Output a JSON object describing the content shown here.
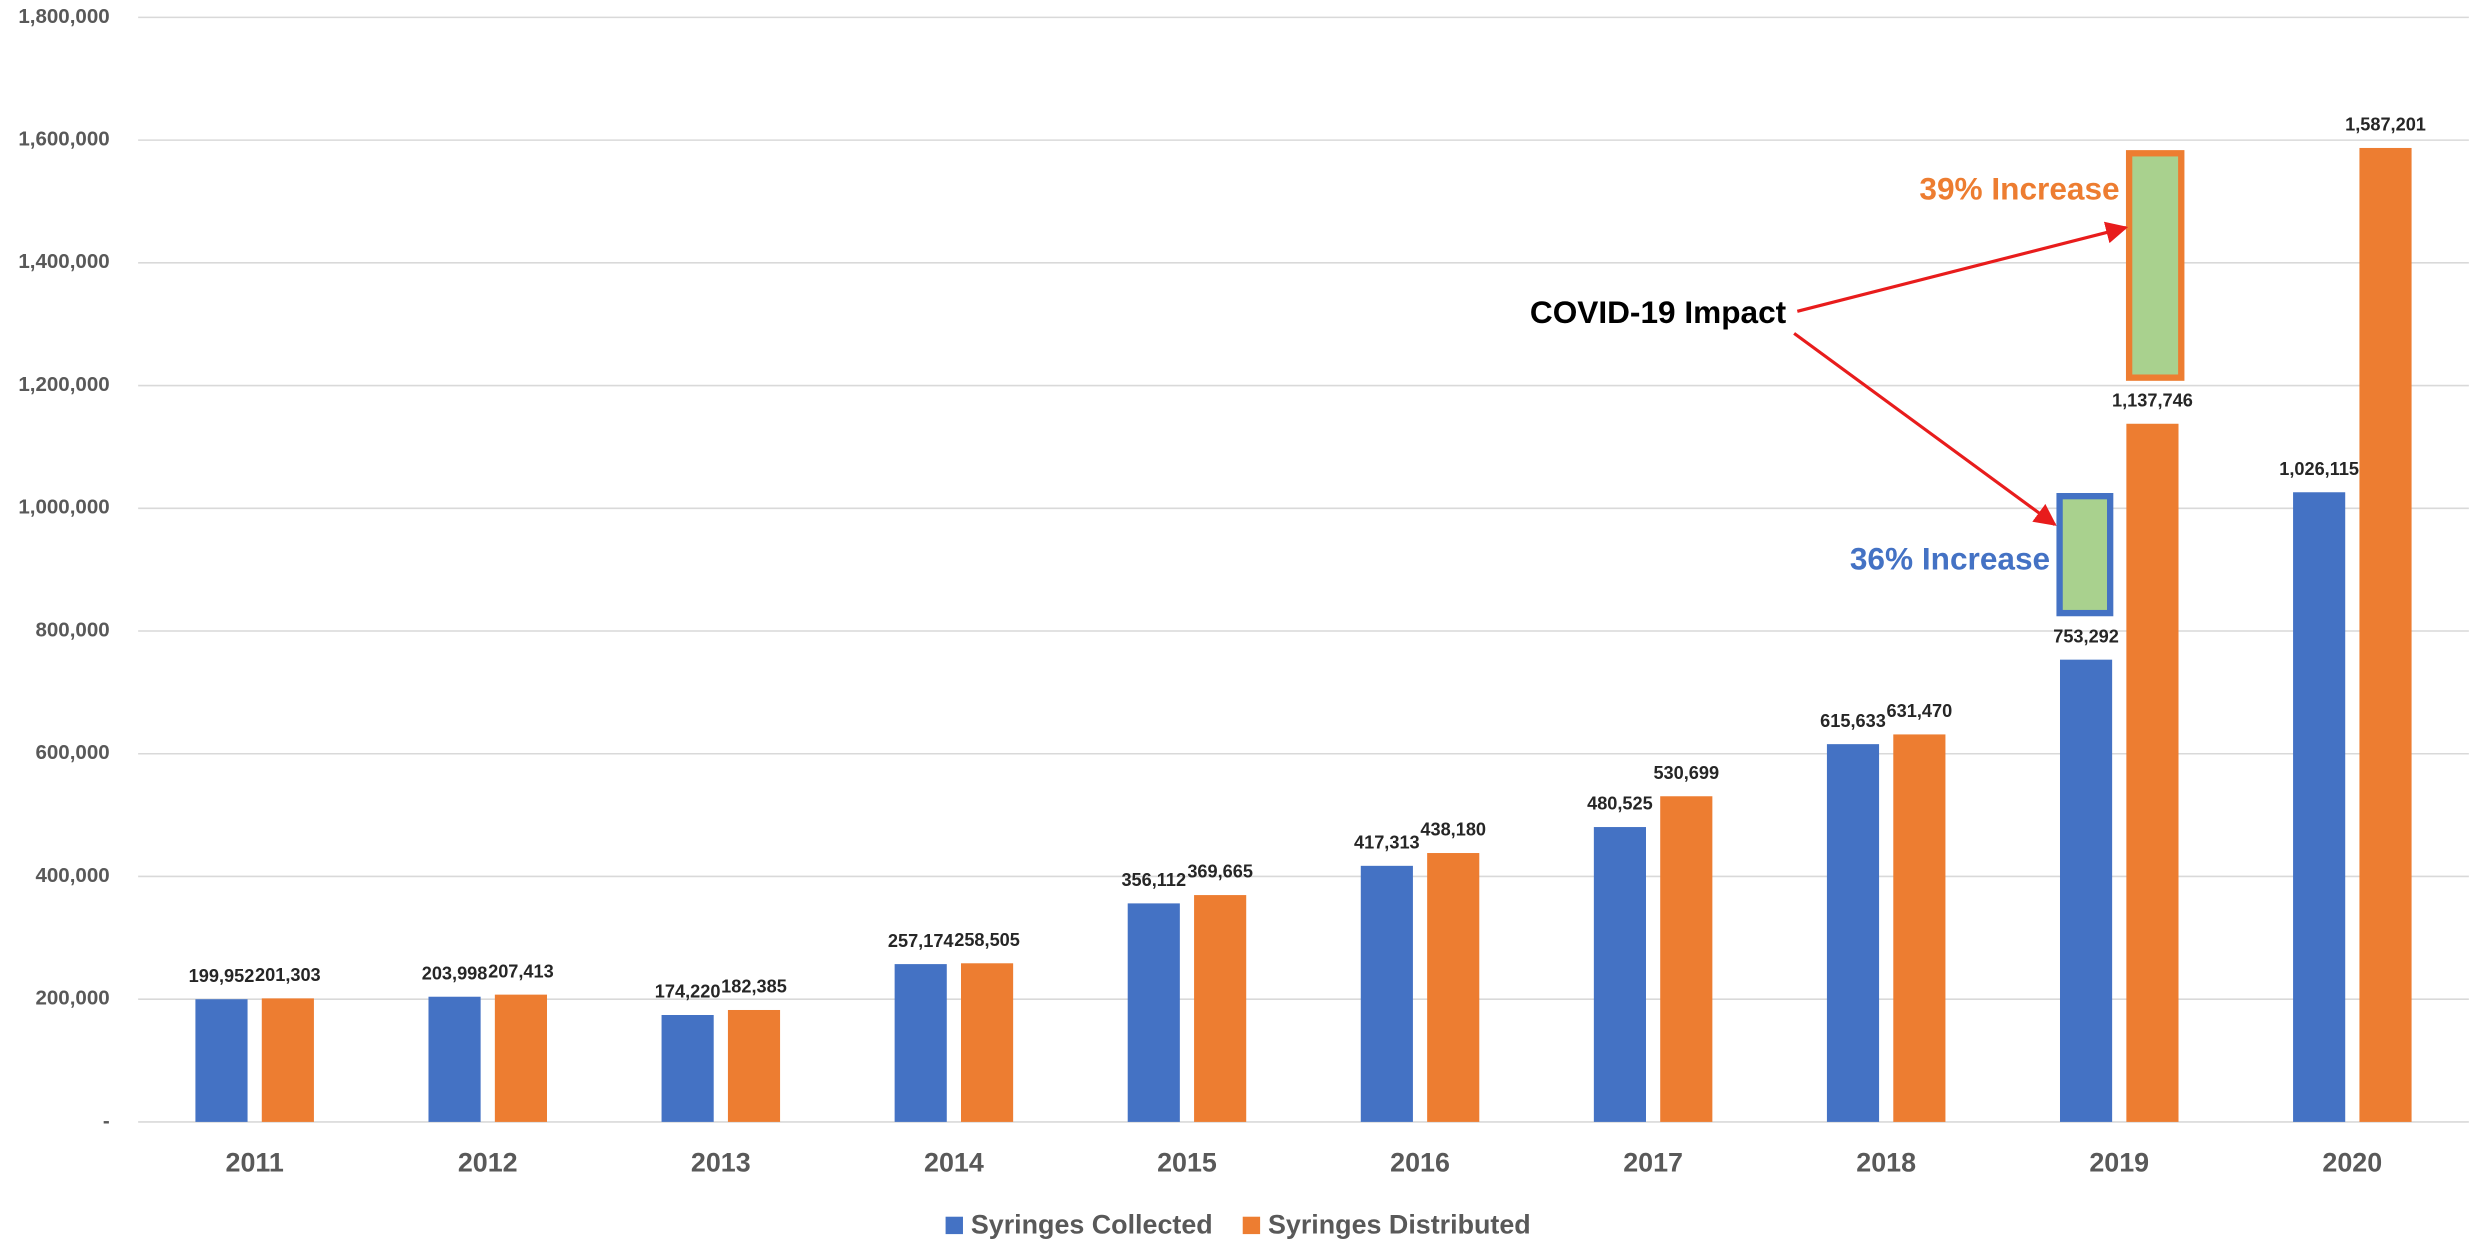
{
  "chart_data": {
    "type": "bar",
    "categories": [
      "2011",
      "2012",
      "2013",
      "2014",
      "2015",
      "2016",
      "2017",
      "2018",
      "2019",
      "2020"
    ],
    "series": [
      {
        "name": "Syringes Collected",
        "color": "#4472c4",
        "values": [
          199952,
          203998,
          174220,
          257174,
          356112,
          417313,
          480525,
          615633,
          753292,
          1026115
        ],
        "value_labels": [
          "199,952",
          "203,998",
          "174,220",
          "257,174",
          "356,112",
          "417,313",
          "480,525",
          "615,633",
          "753,292",
          "1,026,115"
        ]
      },
      {
        "name": "Syringes Distributed",
        "color": "#ed7d31",
        "values": [
          201303,
          207413,
          182385,
          258505,
          369665,
          438180,
          530699,
          631470,
          1137746,
          1587201
        ],
        "value_labels": [
          "201,303",
          "207,413",
          "182,385",
          "258,505",
          "369,665",
          "438,180",
          "530,699",
          "631,470",
          "1,137,746",
          "1,587,201"
        ]
      }
    ],
    "ylim": [
      0,
      1800000
    ],
    "yticks": [
      {
        "value": 0,
        "label": "-"
      },
      {
        "value": 200000,
        "label": "200,000"
      },
      {
        "value": 400000,
        "label": "400,000"
      },
      {
        "value": 600000,
        "label": "600,000"
      },
      {
        "value": 800000,
        "label": "800,000"
      },
      {
        "value": 1000000,
        "label": "1,000,000"
      },
      {
        "value": 1200000,
        "label": "1,200,000"
      },
      {
        "value": 1400000,
        "label": "1,400,000"
      },
      {
        "value": 1600000,
        "label": "1,600,000"
      },
      {
        "value": 1800000,
        "label": "1,800,000"
      }
    ],
    "grid": true,
    "legend": "bottom",
    "annotations": [
      "COVID-19 Impact",
      "39% Increase",
      "36% Increase"
    ]
  }
}
